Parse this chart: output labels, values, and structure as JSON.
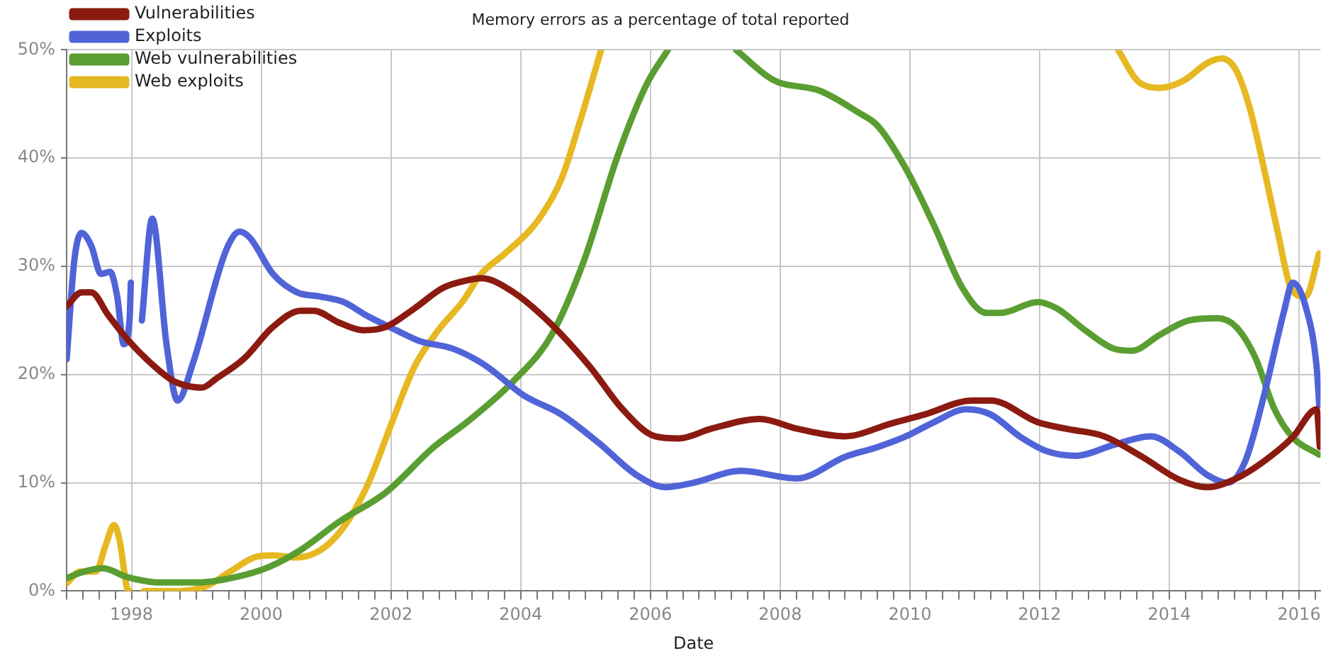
{
  "chart_data": {
    "type": "line",
    "title": "Memory errors as a percentage of total reported",
    "xlabel": "Date",
    "legend": "top left",
    "grid": true,
    "marker": "none",
    "line_style": "solid",
    "xlim": [
      1997,
      2016.33
    ],
    "xticks": [
      {
        "value": 1997,
        "label": null
      },
      {
        "value": 1997.25,
        "label": null
      },
      {
        "value": 1997.5,
        "label": null
      },
      {
        "value": 1997.75,
        "label": null
      },
      1998,
      {
        "value": 1998.25,
        "label": null
      },
      {
        "value": 1998.5,
        "label": null
      },
      {
        "value": 1998.75,
        "label": null
      },
      {
        "value": 1999,
        "label": null
      },
      {
        "value": 1999.25,
        "label": null
      },
      {
        "value": 1999.5,
        "label": null
      },
      {
        "value": 1999.75,
        "label": null
      },
      2000,
      {
        "value": 2000.25,
        "label": null
      },
      {
        "value": 2000.5,
        "label": null
      },
      {
        "value": 2000.75,
        "label": null
      },
      {
        "value": 2001,
        "label": null
      },
      {
        "value": 2001.25,
        "label": null
      },
      {
        "value": 2001.5,
        "label": null
      },
      {
        "value": 2001.75,
        "label": null
      },
      2002,
      {
        "value": 2002.25,
        "label": null
      },
      {
        "value": 2002.5,
        "label": null
      },
      {
        "value": 2002.75,
        "label": null
      },
      {
        "value": 2003,
        "label": null
      },
      {
        "value": 2003.25,
        "label": null
      },
      {
        "value": 2003.5,
        "label": null
      },
      {
        "value": 2003.75,
        "label": null
      },
      2004,
      {
        "value": 2004.25,
        "label": null
      },
      {
        "value": 2004.5,
        "label": null
      },
      {
        "value": 2004.75,
        "label": null
      },
      {
        "value": 2005,
        "label": null
      },
      {
        "value": 2005.25,
        "label": null
      },
      {
        "value": 2005.5,
        "label": null
      },
      {
        "value": 2005.75,
        "label": null
      },
      2006,
      {
        "value": 2006.25,
        "label": null
      },
      {
        "value": 2006.5,
        "label": null
      },
      {
        "value": 2006.75,
        "label": null
      },
      {
        "value": 2007,
        "label": null
      },
      {
        "value": 2007.25,
        "label": null
      },
      {
        "value": 2007.5,
        "label": null
      },
      {
        "value": 2007.75,
        "label": null
      },
      2008,
      {
        "value": 2008.25,
        "label": null
      },
      {
        "value": 2008.5,
        "label": null
      },
      {
        "value": 2008.75,
        "label": null
      },
      {
        "value": 2009,
        "label": null
      },
      {
        "value": 2009.25,
        "label": null
      },
      {
        "value": 2009.5,
        "label": null
      },
      {
        "value": 2009.75,
        "label": null
      },
      2010,
      {
        "value": 2010.25,
        "label": null
      },
      {
        "value": 2010.5,
        "label": null
      },
      {
        "value": 2010.75,
        "label": null
      },
      {
        "value": 2011,
        "label": null
      },
      {
        "value": 2011.25,
        "label": null
      },
      {
        "value": 2011.5,
        "label": null
      },
      {
        "value": 2011.75,
        "label": null
      },
      2012,
      {
        "value": 2012.25,
        "label": null
      },
      {
        "value": 2012.5,
        "label": null
      },
      {
        "value": 2012.75,
        "label": null
      },
      {
        "value": 2013,
        "label": null
      },
      {
        "value": 2013.25,
        "label": null
      },
      {
        "value": 2013.5,
        "label": null
      },
      {
        "value": 2013.75,
        "label": null
      },
      2014,
      {
        "value": 2014.25,
        "label": null
      },
      {
        "value": 2014.5,
        "label": null
      },
      {
        "value": 2014.75,
        "label": null
      },
      {
        "value": 2015,
        "label": null
      },
      {
        "value": 2015.25,
        "label": null
      },
      {
        "value": 2015.5,
        "label": null
      },
      {
        "value": 2015.75,
        "label": null
      },
      2016,
      {
        "value": 2016.25,
        "label": null
      }
    ],
    "ylim": [
      0,
      50
    ],
    "yticks": [
      {
        "value": 0,
        "label": "0%"
      },
      {
        "value": 10,
        "label": "10%"
      },
      {
        "value": 20,
        "label": "20%"
      },
      {
        "value": 30,
        "label": "30%"
      },
      {
        "value": 40,
        "label": "40%"
      },
      {
        "value": 50,
        "label": "50%"
      }
    ],
    "series": [
      {
        "name": "Vulnerabilities",
        "color": "#8b1a10",
        "x": [
          1997.0,
          1997.23,
          1997.38,
          1997.64,
          1997.93,
          1998.29,
          1998.65,
          1999.09,
          1999.3,
          1999.74,
          2000.18,
          2000.61,
          2000.81,
          2001.2,
          2001.57,
          2001.92,
          2002.36,
          2002.8,
          2003.17,
          2003.39,
          2003.89,
          2004.48,
          2005.07,
          2005.57,
          2006.07,
          2006.44,
          2006.94,
          2007.69,
          2008.26,
          2009.0,
          2009.72,
          2010.22,
          2010.96,
          2011.25,
          2011.97,
          2012.4,
          2012.99,
          2013.58,
          2014.15,
          2014.59,
          2015.03,
          2015.46,
          2015.9,
          2016.27,
          2016.32
        ],
        "values": [
          26.3,
          27.6,
          27.6,
          25.5,
          23.3,
          21.1,
          19.4,
          18.8,
          19.6,
          21.5,
          24.4,
          25.9,
          25.9,
          24.8,
          24.1,
          24.4,
          26.1,
          28.0,
          28.7,
          28.9,
          27.6,
          24.6,
          20.7,
          16.8,
          14.3,
          14.1,
          15.0,
          15.9,
          15.0,
          14.3,
          15.5,
          16.3,
          17.6,
          17.6,
          15.6,
          15.0,
          14.3,
          12.4,
          10.3,
          9.6,
          10.4,
          12.0,
          14.2,
          16.8,
          13.3
        ]
      },
      {
        "name": "Exploits",
        "color": "#5064d8",
        "x": [
          1997.0,
          1997.12,
          1997.23,
          1997.38,
          1997.53,
          1997.67,
          1997.78,
          1997.88,
          1997.97,
          1997.99,
          1998.08,
          1998.16,
          1998.32,
          1998.54,
          1998.71,
          1998.95,
          1999.46,
          1999.67,
          1999.83,
          2000.18,
          2000.55,
          2000.92,
          2001.27,
          2001.64,
          2002.08,
          2002.44,
          2002.95,
          2003.39,
          2003.6,
          2004.04,
          2004.63,
          2005.2,
          2005.79,
          2006.23,
          2006.66,
          2007.39,
          2008.26,
          2009.0,
          2009.5,
          2009.94,
          2010.37,
          2010.87,
          2011.25,
          2011.69,
          2012.12,
          2012.56,
          2013.14,
          2013.71,
          2014.15,
          2014.59,
          2014.9,
          2015.17,
          2015.46,
          2015.77,
          2015.9,
          2016.1,
          2016.27,
          2016.31
        ],
        "values": [
          21.4,
          30.6,
          33.1,
          31.9,
          29.3,
          29.5,
          27.2,
          22.8,
          25.0,
          28.5,
          null,
          25.0,
          34.4,
          22.8,
          17.6,
          21.1,
          31.5,
          33.2,
          32.6,
          29.3,
          27.6,
          27.2,
          26.7,
          25.4,
          24.1,
          23.1,
          22.4,
          21.1,
          20.2,
          18.1,
          16.3,
          13.7,
          10.7,
          9.6,
          10.0,
          11.1,
          10.4,
          12.4,
          13.3,
          14.3,
          15.6,
          16.8,
          16.3,
          14.3,
          12.9,
          12.5,
          13.5,
          14.3,
          12.9,
          10.7,
          10.0,
          12.0,
          18.1,
          25.9,
          28.5,
          26.3,
          20.7,
          17.2
        ]
      },
      {
        "name": "Web vulnerabilities",
        "color": "#5a9e32",
        "x": [
          1997.0,
          1997.27,
          1997.56,
          1997.93,
          1998.43,
          1999.02,
          1999.61,
          2000.11,
          2000.61,
          2001.2,
          2001.92,
          2002.66,
          2003.17,
          2003.89,
          2004.48,
          2004.98,
          2005.5,
          2005.94,
          2006.27,
          2006.8,
          2007.32,
          2007.9,
          2008.62,
          2009.21,
          2009.5,
          2009.94,
          2010.37,
          2010.81,
          2011.18,
          2011.4,
          2011.97,
          2012.27,
          2012.7,
          2013.14,
          2013.42,
          2013.86,
          2014.3,
          2014.74,
          2015.03,
          2015.33,
          2015.62,
          2015.9,
          2016.31
        ],
        "values": [
          1.2,
          1.8,
          2.1,
          1.3,
          0.8,
          0.8,
          1.3,
          2.2,
          3.8,
          6.4,
          9.1,
          13.3,
          15.6,
          19.4,
          23.7,
          30.6,
          40.3,
          46.8,
          50,
          null,
          50,
          47.2,
          46.2,
          44.2,
          43.0,
          39.0,
          33.8,
          28.0,
          25.7,
          25.7,
          26.7,
          26.1,
          24.1,
          22.4,
          22.2,
          23.7,
          25.0,
          25.2,
          24.4,
          21.5,
          16.8,
          14.2,
          12.6
        ]
      },
      {
        "name": "Web exploits",
        "color": "#e6b822",
        "x": [
          1997.0,
          1997.21,
          1997.45,
          1997.6,
          1997.73,
          1997.82,
          1997.93,
          1997.97,
          1998.08,
          1998.19,
          1998.74,
          1999.17,
          1999.52,
          1999.89,
          2000.18,
          2000.55,
          2000.92,
          2001.27,
          2001.64,
          2002.01,
          2002.36,
          2002.73,
          2003.1,
          2003.39,
          2003.76,
          2004.26,
          2004.63,
          2004.91,
          2005.24,
          2009.0,
          2013.21,
          2013.5,
          2013.86,
          2014.23,
          2014.59,
          2014.81,
          2015.03,
          2015.24,
          2015.46,
          2015.68,
          2015.88,
          2016.1,
          2016.31
        ],
        "values": [
          0.7,
          1.8,
          1.8,
          4.2,
          6.1,
          4.6,
          0.3,
          0,
          null,
          0,
          0,
          0.5,
          1.8,
          3.1,
          3.3,
          3.1,
          3.8,
          5.9,
          9.8,
          15.5,
          20.7,
          24.1,
          26.7,
          29.3,
          31.2,
          34.2,
          38.1,
          43.3,
          50,
          null,
          50,
          47.2,
          46.5,
          47.2,
          48.8,
          49.2,
          48.1,
          44.6,
          39.0,
          32.9,
          27.9,
          27.2,
          31.2
        ]
      }
    ]
  }
}
